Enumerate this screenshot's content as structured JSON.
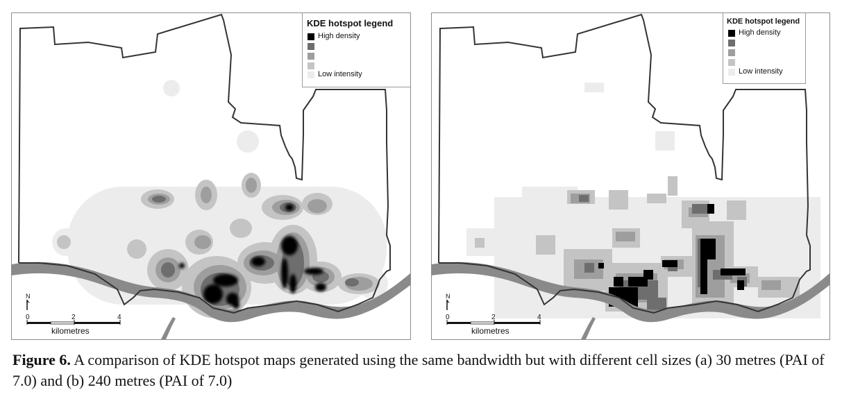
{
  "figure": {
    "caption_label": "Figure 6.",
    "caption_text": " A comparison of KDE hotspot maps generated using the same bandwidth but with different cell sizes (a) 30 metres (PAI of 7.0) and (b) 240 metres (PAI of 7.0)"
  },
  "legend": {
    "title": "KDE hotspot legend",
    "high_label": "High density",
    "low_label": "Low intensity",
    "classes": [
      "#000000",
      "#6e6e6e",
      "#9e9e9e",
      "#c4c4c4",
      "#ececec"
    ]
  },
  "scalebar": {
    "ticks": [
      "0",
      "2",
      "4"
    ],
    "unit": "kilometres",
    "north": "N"
  },
  "colors": {
    "boundary": "#333333",
    "river": "#8a8a8a",
    "frame": "#8c8c8c"
  },
  "maps": [
    {
      "panel": "a",
      "cell_size_m": 30,
      "PAI": 7.0
    },
    {
      "panel": "b",
      "cell_size_m": 240,
      "PAI": 7.0
    }
  ]
}
